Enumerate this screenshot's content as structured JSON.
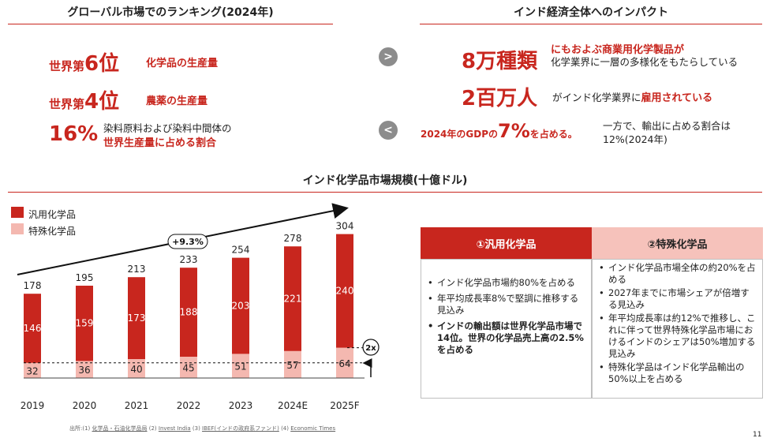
{
  "left_section": {
    "title": "グローバル市場でのランキング(2024年)",
    "rows": [
      {
        "prefix": "世界第",
        "big": "6位",
        "label": "化学品の生産量"
      },
      {
        "prefix": "世界第",
        "big": "4位",
        "label": "農薬の生産量"
      },
      {
        "big": "16%",
        "line1": "染料原料および染料中間体の",
        "line2": "世界生産量に占める割合"
      }
    ]
  },
  "nav": {
    "next": ">",
    "prev": "<"
  },
  "right_section": {
    "title": "インド経済全体へのインパクト",
    "row1": {
      "big": "8万種類",
      "line1": "にもおよぶ商業用化学製品が",
      "line2": "化学業界に一層の多様化をもたらしている"
    },
    "row2": {
      "big": "2百万人",
      "text_normal": "がインド化学業界に",
      "text_red": "雇用されている"
    },
    "row3": {
      "pre": "2024年のGDPの",
      "big": "7%",
      "post": "を占める。",
      "note1": "一方で、輸出に占める割合は",
      "note2": "12%(2024年)"
    }
  },
  "chart_section": {
    "title": "インド化学品市場規模(十億ドル)"
  },
  "chart_data": {
    "type": "bar",
    "stacked": true,
    "categories": [
      "2019",
      "2020",
      "2021",
      "2022",
      "2023",
      "2024E",
      "2025F"
    ],
    "series": [
      {
        "name": "汎用化学品",
        "values": [
          146,
          159,
          173,
          188,
          203,
          221,
          240
        ],
        "color": "#c8261e"
      },
      {
        "name": "特殊化学品",
        "values": [
          32,
          36,
          40,
          45,
          51,
          57,
          64
        ],
        "color": "#f4b8b0"
      }
    ],
    "totals": [
      178,
      195,
      213,
      233,
      254,
      278,
      304
    ],
    "cagr_label": "+9.3%",
    "multiplier_label": "2x",
    "legend_position": "top-left"
  },
  "table": {
    "col1": {
      "header": "①汎用化学品",
      "items": [
        "インド化学品市場約80%を占める",
        "年平均成長率8%で堅調に推移する見込み",
        "インドの輸出額は世界化学品市場で14位。世界の化学品売上高の2.5%を占める"
      ]
    },
    "col2": {
      "header": "②特殊化学品",
      "items": [
        "インド化学品市場全体の約20%を占める",
        "2027年までに市場シェアが倍増する見込み",
        "年平均成長率は約12%で推移し、これに伴って世界特殊化学品市場におけるインドのシェアは50%増加する見込み",
        "特殊化学品はインド化学品輸出の50%以上を占める"
      ]
    }
  },
  "source": {
    "prefix": "出所:(1)",
    "s1": "化学品・石油化学品局",
    "s2": "(2)",
    "s3": "Invest India",
    "s4": "(3)",
    "s5": "IBEF(インドの政府系ファンド)",
    "s6": "(4)",
    "s7": "Economic Times"
  },
  "page_number": "11",
  "colors": {
    "accent": "#c8261e",
    "light": "#f4b8b0",
    "table_light_header": "#f6c2bb"
  }
}
